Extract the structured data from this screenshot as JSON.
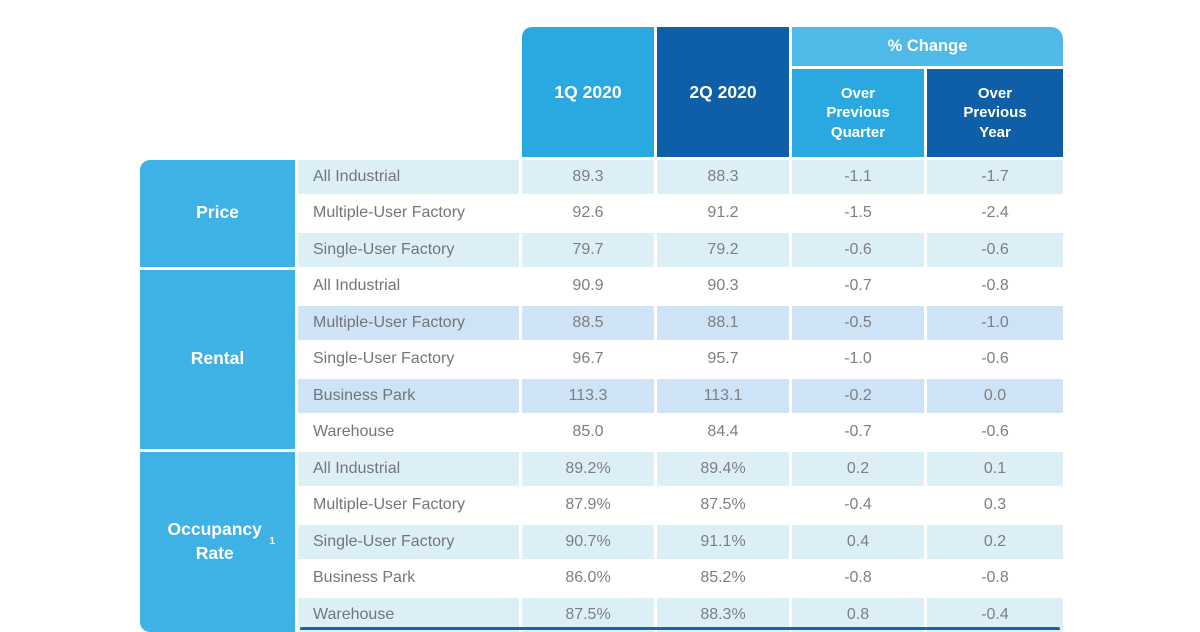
{
  "chart_data": {
    "type": "table",
    "header": {
      "q1": "1Q 2020",
      "q2": "2Q 2020",
      "pct_change": "% Change",
      "over_prev_quarter": "Over Previous Quarter",
      "over_prev_year": "Over Previous Year"
    },
    "sections": [
      {
        "label": "Price",
        "sup": "",
        "stripe": "#DDEFF6",
        "rows": [
          {
            "label": "All Industrial",
            "q1": "89.3",
            "q2": "88.3",
            "opq": "-1.1",
            "opy": "-1.7",
            "shaded": true
          },
          {
            "label": "Multiple-User Factory",
            "q1": "92.6",
            "q2": "91.2",
            "opq": "-1.5",
            "opy": "-2.4",
            "shaded": false
          },
          {
            "label": "Single-User Factory",
            "q1": "79.7",
            "q2": "79.2",
            "opq": "-0.6",
            "opy": "-0.6",
            "shaded": true
          }
        ]
      },
      {
        "label": "Rental",
        "sup": "",
        "stripe": "#CFE3F6",
        "rows": [
          {
            "label": "All Industrial",
            "q1": "90.9",
            "q2": "90.3",
            "opq": "-0.7",
            "opy": "-0.8",
            "shaded": false
          },
          {
            "label": "Multiple-User Factory",
            "q1": "88.5",
            "q2": "88.1",
            "opq": "-0.5",
            "opy": "-1.0",
            "shaded": true
          },
          {
            "label": "Single-User Factory",
            "q1": "96.7",
            "q2": "95.7",
            "opq": "-1.0",
            "opy": "-0.6",
            "shaded": false
          },
          {
            "label": "Business Park",
            "q1": "113.3",
            "q2": "113.1",
            "opq": "-0.2",
            "opy": "0.0",
            "shaded": true
          },
          {
            "label": "Warehouse",
            "q1": "85.0",
            "q2": "84.4",
            "opq": "-0.7",
            "opy": "-0.6",
            "shaded": false
          }
        ]
      },
      {
        "label": "Occupancy Rate",
        "sup": "1",
        "stripe": "#DDEFF6",
        "rows": [
          {
            "label": "All Industrial",
            "q1": "89.2%",
            "q2": "89.4%",
            "opq": "0.2",
            "opy": "0.1",
            "shaded": true
          },
          {
            "label": "Multiple-User Factory",
            "q1": "87.9%",
            "q2": "87.5%",
            "opq": "-0.4",
            "opy": "0.3",
            "shaded": false
          },
          {
            "label": "Single-User Factory",
            "q1": "90.7%",
            "q2": "91.1%",
            "opq": "0.4",
            "opy": "0.2",
            "shaded": true
          },
          {
            "label": "Business Park",
            "q1": "86.0%",
            "q2": "85.2%",
            "opq": "-0.8",
            "opy": "-0.8",
            "shaded": false
          },
          {
            "label": "Warehouse",
            "q1": "87.5%",
            "q2": "88.3%",
            "opq": "0.8",
            "opy": "-0.4",
            "shaded": true
          }
        ]
      }
    ],
    "colors": {
      "header_cyan": "#29A9E0",
      "header_dark_blue": "#0E5EA8",
      "pct_change_band": "#4FB9E8",
      "group_header_cyan": "#3EB1E5",
      "stripe_cyan": "#DDEFF6",
      "stripe_blue": "#CFE3F6",
      "row_white": "#FFFFFF",
      "value_text_gray": "#7D7F83",
      "footer_bar_blue": "#1565AB"
    }
  }
}
